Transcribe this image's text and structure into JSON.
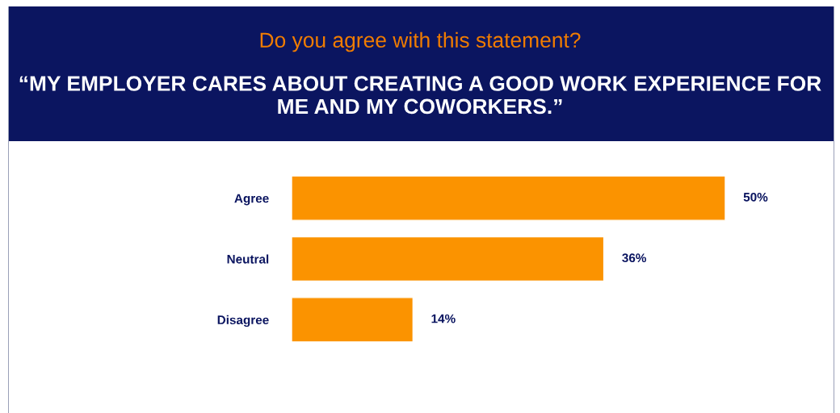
{
  "chart_data": {
    "type": "bar",
    "orientation": "horizontal",
    "title": "Do you agree with this statement?",
    "subtitle": "“MY EMPLOYER CARES ABOUT CREATING A GOOD WORK EXPERIENCE FOR ME AND MY COWORKERS.”",
    "categories": [
      "Agree",
      "Neutral",
      "Disagree"
    ],
    "values": [
      50,
      36,
      14
    ],
    "value_labels": [
      "50%",
      "36%",
      "14%"
    ],
    "color": "#fb9300",
    "grid": false,
    "legend": false
  }
}
